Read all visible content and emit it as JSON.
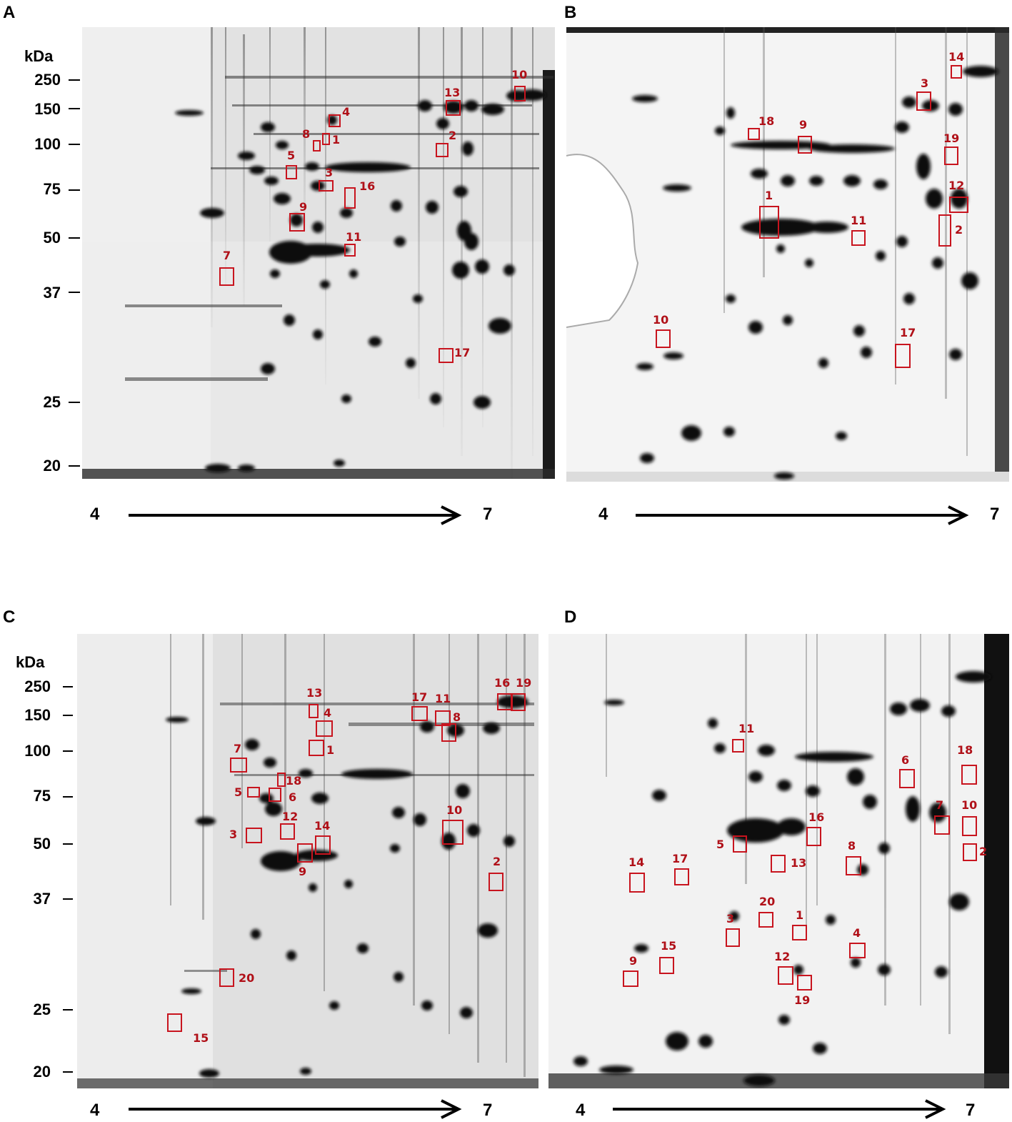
{
  "panels": [
    {
      "id": "A",
      "letter": "A",
      "kda": "kDa",
      "mw": [
        "250",
        "150",
        "100",
        "75",
        "50",
        "37",
        "25",
        "20"
      ],
      "ph_low": "4",
      "ph_high": "7",
      "spots": [
        "1",
        "2",
        "3",
        "4",
        "5",
        "7",
        "8",
        "9",
        "10",
        "11",
        "13",
        "16",
        "17"
      ]
    },
    {
      "id": "B",
      "letter": "B",
      "kda": "",
      "mw": [],
      "ph_low": "4",
      "ph_high": "7",
      "spots": [
        "1",
        "2",
        "3",
        "9",
        "10",
        "11",
        "12",
        "14",
        "17",
        "18",
        "19"
      ]
    },
    {
      "id": "C",
      "letter": "C",
      "kda": "kDa",
      "mw": [
        "250",
        "150",
        "100",
        "75",
        "50",
        "37",
        "25",
        "20"
      ],
      "ph_low": "4",
      "ph_high": "7",
      "spots": [
        "1",
        "2",
        "3",
        "4",
        "5",
        "6",
        "7",
        "8",
        "9",
        "10",
        "11",
        "12",
        "13",
        "14",
        "15",
        "16",
        "17",
        "18",
        "19",
        "20"
      ]
    },
    {
      "id": "D",
      "letter": "D",
      "kda": "",
      "mw": [],
      "ph_low": "4",
      "ph_high": "7",
      "spots": [
        "1",
        "2",
        "3",
        "4",
        "5",
        "6",
        "7",
        "8",
        "9",
        "10",
        "11",
        "12",
        "13",
        "14",
        "15",
        "16",
        "17",
        "18",
        "19",
        "20"
      ]
    }
  ],
  "colors": {
    "box": "#c8141e",
    "label": "#b01018",
    "spot": "#111111"
  }
}
